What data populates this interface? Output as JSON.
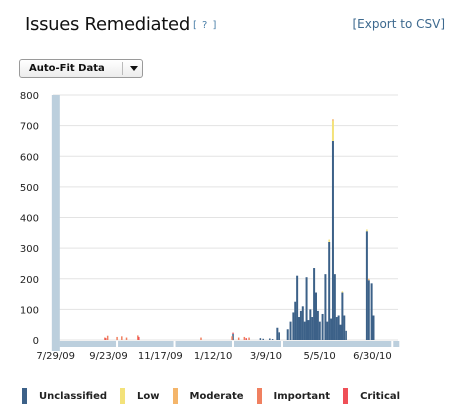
{
  "header": {
    "title": "Issues Remediated",
    "help_label": "[ ? ]",
    "export_label": "[Export to CSV]"
  },
  "controls": {
    "scale_mode": "Auto-Fit Data"
  },
  "colors": {
    "background_bars": "#bccfdd",
    "grid": "#e3e3e3"
  },
  "chart_data": {
    "type": "bar",
    "stacked": true,
    "title": "",
    "xlabel": "",
    "ylabel": "",
    "ylim": [
      0,
      800
    ],
    "yticks": [
      0,
      100,
      200,
      300,
      400,
      500,
      600,
      700,
      800
    ],
    "xlim": [
      "2009-07-24",
      "2010-07-25"
    ],
    "xticks": [
      "2009-07-29",
      "2009-09-23",
      "2009-11-17",
      "2010-01-12",
      "2010-03-09",
      "2010-05-05",
      "2010-06-30"
    ],
    "xtick_labels": [
      "7/29/09",
      "9/23/09",
      "11/17/09",
      "1/12/10",
      "3/9/10",
      "5/5/10",
      "6/30/10"
    ],
    "grid": true,
    "legend_position": "bottom",
    "series": [
      {
        "name": "Unclassified",
        "color": "#3c6188",
        "points": [
          [
            "2009-07-27",
            800
          ],
          [
            "2010-01-31",
            20
          ],
          [
            "2010-03-01",
            6
          ],
          [
            "2010-03-04",
            4
          ],
          [
            "2010-03-11",
            5
          ],
          [
            "2010-03-14",
            3
          ],
          [
            "2010-03-19",
            40
          ],
          [
            "2010-03-21",
            25
          ],
          [
            "2010-03-30",
            35
          ],
          [
            "2010-04-02",
            60
          ],
          [
            "2010-04-05",
            90
          ],
          [
            "2010-04-07",
            125
          ],
          [
            "2010-04-09",
            210
          ],
          [
            "2010-04-11",
            75
          ],
          [
            "2010-04-13",
            95
          ],
          [
            "2010-04-15",
            110
          ],
          [
            "2010-04-17",
            60
          ],
          [
            "2010-04-19",
            205
          ],
          [
            "2010-04-21",
            65
          ],
          [
            "2010-04-23",
            100
          ],
          [
            "2010-04-25",
            75
          ],
          [
            "2010-04-27",
            235
          ],
          [
            "2010-04-29",
            155
          ],
          [
            "2010-05-01",
            95
          ],
          [
            "2010-05-03",
            60
          ],
          [
            "2010-05-06",
            85
          ],
          [
            "2010-05-09",
            215
          ],
          [
            "2010-05-11",
            60
          ],
          [
            "2010-05-13",
            320
          ],
          [
            "2010-05-15",
            70
          ],
          [
            "2010-05-17",
            650
          ],
          [
            "2010-05-19",
            215
          ],
          [
            "2010-05-21",
            75
          ],
          [
            "2010-05-23",
            80
          ],
          [
            "2010-05-25",
            50
          ],
          [
            "2010-05-27",
            155
          ],
          [
            "2010-05-29",
            80
          ],
          [
            "2010-05-31",
            30
          ],
          [
            "2010-06-22",
            355
          ],
          [
            "2010-06-24",
            195
          ],
          [
            "2010-06-27",
            185
          ],
          [
            "2010-06-29",
            80
          ]
        ]
      },
      {
        "name": "Low",
        "color": "#f3e27a",
        "points": [
          [
            "2010-05-17",
            65
          ],
          [
            "2010-05-13",
            8
          ],
          [
            "2010-06-22",
            6
          ],
          [
            "2010-05-27",
            4
          ]
        ]
      },
      {
        "name": "Moderate",
        "color": "#f4b56a",
        "points": [
          [
            "2010-05-17",
            6
          ],
          [
            "2010-06-24",
            5
          ]
        ]
      },
      {
        "name": "Important",
        "color": "#f08060",
        "points": [
          [
            "2009-09-17",
            8
          ],
          [
            "2009-09-20",
            14
          ],
          [
            "2009-09-30",
            10
          ],
          [
            "2009-10-05",
            12
          ],
          [
            "2009-10-10",
            8
          ],
          [
            "2009-10-22",
            15
          ],
          [
            "2009-12-28",
            8
          ],
          [
            "2010-01-30",
            12
          ],
          [
            "2010-02-06",
            8
          ],
          [
            "2010-02-12",
            10
          ],
          [
            "2010-02-17",
            8
          ]
        ]
      },
      {
        "name": "Critical",
        "color": "#ef4f57",
        "points": [
          [
            "2009-09-18",
            6
          ],
          [
            "2009-10-23",
            10
          ],
          [
            "2010-01-31",
            4
          ],
          [
            "2010-02-14",
            6
          ]
        ]
      }
    ],
    "background_bars": [
      [
        "2009-07-27",
        800
      ],
      [
        "2009-07-31",
        -20
      ],
      [
        "2009-10-01",
        -20
      ],
      [
        "2009-12-01",
        -20
      ],
      [
        "2010-02-01",
        -20
      ],
      [
        "2010-03-25",
        -20
      ],
      [
        "2010-07-20",
        -20
      ]
    ]
  }
}
